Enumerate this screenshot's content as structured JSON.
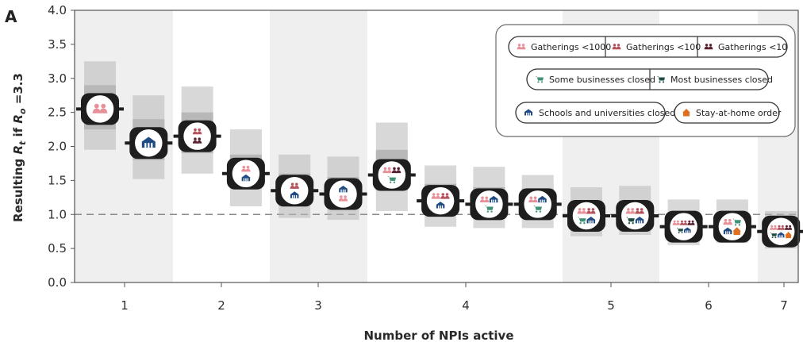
{
  "panel_label": "A",
  "legend": {
    "gatherings_1000": "Gatherings <1000",
    "gatherings_100": "Gatherings <100",
    "gatherings_10": "Gatherings <10",
    "some_business": "Some businesses closed",
    "most_business": "Most businesses closed",
    "schools": "Schools and universities closed",
    "stay_home": "Stay-at-home order"
  },
  "colors": {
    "gatherings_1000": "#e8909a",
    "gatherings_100": "#b5535d",
    "gatherings_10": "#5a2230",
    "some_business": "#3f9179",
    "most_business": "#1f4d45",
    "schools": "#1f4a82",
    "stay_home": "#e0701f",
    "band": "#efefef",
    "interval_box": "#b8b8b8"
  },
  "chart_data": {
    "type": "interval",
    "title": "",
    "xlabel": "Number of NPIs active",
    "ylabel_prefix": "Resulting ",
    "ylabel_R": "R",
    "ylabel_t": "t",
    "ylabel_mid": " if ",
    "ylabel_o": "o",
    "ylabel_suffix": " =3.3",
    "ylim": [
      0.0,
      4.0
    ],
    "y_ticks": [
      "0.0",
      "0.5",
      "1.0",
      "1.5",
      "2.0",
      "2.5",
      "3.0",
      "3.5",
      "4.0"
    ],
    "x_ticks": [
      "1",
      "2",
      "3",
      "4",
      "5",
      "6",
      "7"
    ],
    "reference_line": 1.0,
    "groups": [
      {
        "n": 1,
        "points": [
          {
            "combo": [
              "gatherings_1000"
            ],
            "median": 2.55,
            "box": [
              2.25,
              2.9
            ],
            "range": [
              1.95,
              3.25
            ]
          },
          {
            "combo": [
              "schools"
            ],
            "median": 2.05,
            "box": [
              1.8,
              2.4
            ],
            "range": [
              1.52,
              2.75
            ]
          },
          {
            "combo": [
              "gatherings_100",
              "gatherings_10"
            ],
            "median": 2.15,
            "box": [
              1.9,
              2.5
            ],
            "range": [
              1.6,
              2.88
            ]
          }
        ]
      },
      {
        "n": 2,
        "points": [
          {
            "combo": [
              "gatherings_1000",
              "schools"
            ],
            "median": 1.6,
            "box": [
              1.38,
              1.88
            ],
            "range": [
              1.12,
              2.25
            ]
          },
          {
            "combo": [
              "gatherings_100",
              "schools"
            ],
            "median": 1.35,
            "box": [
              1.15,
              1.6
            ],
            "range": [
              0.95,
              1.88
            ]
          },
          {
            "combo": [
              "schools",
              "gatherings_1000"
            ],
            "median": 1.3,
            "box": [
              1.12,
              1.55
            ],
            "range": [
              0.92,
              1.85
            ]
          }
        ]
      },
      {
        "n": 3,
        "points": [
          {
            "combo": [
              "gatherings_1000",
              "gatherings_10",
              "some_business"
            ],
            "median": 1.58,
            "box": [
              1.35,
              1.95
            ],
            "range": [
              1.05,
              2.35
            ]
          },
          {
            "combo": [
              "gatherings_1000",
              "gatherings_100",
              "schools"
            ],
            "median": 1.2,
            "box": [
              1.02,
              1.45
            ],
            "range": [
              0.82,
              1.72
            ]
          },
          {
            "combo": [
              "gatherings_1000",
              "schools",
              "some_business"
            ],
            "median": 1.15,
            "box": [
              0.98,
              1.4
            ],
            "range": [
              0.8,
              1.7
            ]
          },
          {
            "combo": [
              "gatherings_1000",
              "schools",
              "some_business"
            ],
            "median": 1.15,
            "box": [
              0.98,
              1.38
            ],
            "range": [
              0.8,
              1.58
            ]
          }
        ]
      },
      {
        "n": 4,
        "points": [
          {
            "combo": [
              "gatherings_1000",
              "gatherings_100",
              "some_business",
              "schools"
            ],
            "median": 0.98,
            "box": [
              0.85,
              1.18
            ],
            "range": [
              0.68,
              1.4
            ]
          },
          {
            "combo": [
              "gatherings_1000",
              "gatherings_100",
              "most_business",
              "schools"
            ],
            "median": 0.98,
            "box": [
              0.85,
              1.18
            ],
            "range": [
              0.7,
              1.42
            ]
          }
        ]
      },
      {
        "n": 5,
        "points": [
          {
            "combo": [
              "gatherings_1000",
              "gatherings_100",
              "gatherings_10",
              "most_business",
              "schools"
            ],
            "median": 0.82,
            "box": [
              0.7,
              1.0
            ],
            "range": [
              0.55,
              1.22
            ]
          },
          {
            "combo": [
              "gatherings_1000",
              "some_business",
              "schools",
              "stay_home"
            ],
            "median": 0.82,
            "box": [
              0.7,
              1.0
            ],
            "range": [
              0.58,
              1.22
            ]
          }
        ]
      },
      {
        "n": 6,
        "points": []
      },
      {
        "n": 7,
        "points": [
          {
            "combo": [
              "gatherings_1000",
              "gatherings_100",
              "gatherings_10",
              "most_business",
              "schools",
              "stay_home"
            ],
            "median": 0.75,
            "box": [
              0.64,
              0.9
            ],
            "range": [
              0.5,
              1.05
            ]
          }
        ]
      }
    ],
    "shaded_groups": [
      1,
      3,
      5,
      7
    ],
    "grid": false,
    "legend_position": "top-right"
  }
}
